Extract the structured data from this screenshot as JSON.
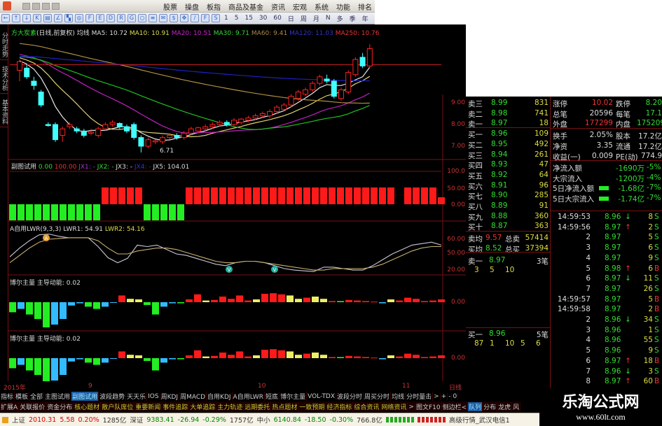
{
  "menu": [
    "股票",
    "操盘",
    "板指",
    "商品及基金",
    "资讯",
    "宏观",
    "系统",
    "功能",
    "排名"
  ],
  "periods": [
    "1",
    "5",
    "15",
    "30",
    "60",
    "日",
    "周",
    "月",
    "N",
    "多",
    "季",
    "年"
  ],
  "side_tabs": [
    "分时走势",
    "技术分析",
    "基本资料"
  ],
  "main_header": {
    "stock": "方大炭素",
    "mode": "(日线,前复权)",
    "ind": "均线",
    "ma5": "MA5: 10.72",
    "ma10": "MA10: 10.91",
    "ma20": "MA20: 10.51",
    "ma30": "MA30: 9.71",
    "ma60": "MA60: 9.41",
    "ma120": "MA120: 11.03",
    "ma250": "MA250: 10.76",
    "low_label": "6.71"
  },
  "panel1_header": {
    "name": "副图试用",
    "v1": "0.00",
    "v2": "100.00",
    "jx1": "JX1: -",
    "jx2": "JX2: -",
    "jx3": "JX3: -",
    "jx4": "JX4: -",
    "jx5": "JX5: 104.01"
  },
  "panel2_header": {
    "name": "A自用LWR(9,3,3)",
    "lwr1": "LWR1: 54.91",
    "lwr2": "LWR2: 54.16"
  },
  "panel3_header": {
    "name": "博尔主量",
    "sub": "主导动能: 0.02"
  },
  "panel4_header": {
    "name": "博尔主量",
    "sub": "主导动能: 0.02"
  },
  "axis": {
    "main": [
      "9.00",
      "8.00",
      "7.00"
    ],
    "p1": [
      "100.0",
      "50.00",
      "0.00"
    ],
    "p2": [
      "60.00",
      "50.00",
      "20.00"
    ],
    "p3": [
      "0.00"
    ],
    "p4": [
      "0.00"
    ]
  },
  "colors": {
    "up": "#ff2020",
    "down": "#40ffff",
    "ma5": "#e8e8e8",
    "ma10": "#e0d070",
    "ma20": "#c020c0",
    "ma30": "#20c020",
    "ma60": "#b09040",
    "ma120": "#2020c0",
    "ma250": "#c02020",
    "green": "#22ee22",
    "red": "#ff1a1a",
    "cyan": "#33bbff",
    "yellow": "#eeee66"
  },
  "candles": [
    [
      10.5,
      11.0,
      10.0,
      10.9
    ],
    [
      10.6,
      10.8,
      10.1,
      10.2
    ],
    [
      10.0,
      10.2,
      9.6,
      9.8
    ],
    [
      9.5,
      9.6,
      8.8,
      8.9
    ],
    [
      8.0,
      8.1,
      7.9,
      7.95
    ],
    [
      8.0,
      8.1,
      7.2,
      7.3
    ],
    [
      7.5,
      7.9,
      7.2,
      7.8
    ],
    [
      7.9,
      8.1,
      7.8,
      8.0
    ],
    [
      7.8,
      7.9,
      7.6,
      7.7
    ],
    [
      7.7,
      7.8,
      7.4,
      7.5
    ],
    [
      7.6,
      7.8,
      7.5,
      7.65
    ],
    [
      7.5,
      7.9,
      7.4,
      7.8
    ],
    [
      7.8,
      8.1,
      7.7,
      8.0
    ],
    [
      8.0,
      8.2,
      7.9,
      8.1
    ],
    [
      8.05,
      8.1,
      7.8,
      7.9
    ],
    [
      7.9,
      8.0,
      7.6,
      7.7
    ],
    [
      8.0,
      8.1,
      7.3,
      7.4
    ],
    [
      7.4,
      7.5,
      6.71,
      7.0
    ],
    [
      7.0,
      7.4,
      6.9,
      7.3
    ],
    [
      7.2,
      7.3,
      7.1,
      7.25
    ],
    [
      7.2,
      7.5,
      7.1,
      7.4
    ],
    [
      7.4,
      7.6,
      7.3,
      7.5
    ],
    [
      7.5,
      7.6,
      7.3,
      7.4
    ],
    [
      7.4,
      7.7,
      7.3,
      7.6
    ],
    [
      7.6,
      7.9,
      7.5,
      7.8
    ],
    [
      7.7,
      7.9,
      7.6,
      7.85
    ],
    [
      7.8,
      8.0,
      7.7,
      7.9
    ],
    [
      7.9,
      8.1,
      7.8,
      8.0
    ],
    [
      8.0,
      8.2,
      7.9,
      8.1
    ],
    [
      8.1,
      8.2,
      7.9,
      8.0
    ],
    [
      8.0,
      8.3,
      7.9,
      8.2
    ],
    [
      8.1,
      8.3,
      8.0,
      8.25
    ],
    [
      8.2,
      8.4,
      8.1,
      8.3
    ],
    [
      8.3,
      8.5,
      8.2,
      8.4
    ],
    [
      8.4,
      8.6,
      8.3,
      8.5
    ],
    [
      8.4,
      8.7,
      8.3,
      8.6
    ],
    [
      8.6,
      8.9,
      8.5,
      8.8
    ],
    [
      8.7,
      9.0,
      8.6,
      8.9
    ],
    [
      8.9,
      9.4,
      8.8,
      9.3
    ],
    [
      9.2,
      9.6,
      9.1,
      9.5
    ],
    [
      9.4,
      9.7,
      9.3,
      9.6
    ],
    [
      9.6,
      10.0,
      9.5,
      9.9
    ],
    [
      9.9,
      10.3,
      9.8,
      10.2
    ],
    [
      10.1,
      10.3,
      9.9,
      10.0
    ],
    [
      10.0,
      10.1,
      9.2,
      9.3
    ],
    [
      9.2,
      9.7,
      9.1,
      9.6
    ],
    [
      9.5,
      10.5,
      9.4,
      10.4
    ],
    [
      10.3,
      11.1,
      10.2,
      11.0
    ],
    [
      11.1,
      11.3,
      10.6,
      10.7
    ],
    [
      10.7,
      11.7,
      10.6,
      11.5
    ]
  ],
  "p1_blocks": [
    -1,
    -1,
    -1,
    -1,
    -1,
    -1,
    -1,
    -1,
    -1,
    -1,
    -1,
    1,
    1,
    1,
    1,
    1,
    -1,
    -1,
    -1,
    -1,
    -1,
    1,
    1,
    1,
    1,
    1,
    1,
    1,
    1,
    1,
    1,
    1,
    1,
    1,
    1,
    1,
    1,
    1,
    1,
    1,
    1,
    1,
    1,
    1,
    1,
    1,
    0,
    1,
    1,
    1,
    1,
    0.5
  ],
  "lwr1": [
    36,
    48,
    58,
    66,
    67,
    64,
    62,
    62,
    62,
    50,
    35,
    28,
    34,
    52,
    50,
    52,
    46,
    40,
    38,
    34,
    30,
    26,
    24,
    28,
    30,
    30,
    28,
    24,
    20,
    18,
    17,
    16,
    22,
    22,
    20,
    18,
    18,
    24,
    32,
    40,
    46,
    52,
    54,
    56,
    52
  ],
  "lwr2": [
    28,
    38,
    48,
    56,
    60,
    61,
    62,
    62,
    62,
    58,
    48,
    40,
    40,
    44,
    46,
    48,
    48,
    46,
    42,
    38,
    34,
    30,
    28,
    28,
    30,
    30,
    28,
    26,
    24,
    22,
    20,
    18,
    18,
    20,
    20,
    20,
    20,
    22,
    26,
    32,
    38,
    44,
    48,
    50,
    50
  ],
  "signals": {
    "up": "A",
    "down": "V"
  },
  "hist": [
    [
      -18,
      "green"
    ],
    [
      -12,
      "cyan"
    ],
    [
      -22,
      "green"
    ],
    [
      -30,
      "green"
    ],
    [
      -45,
      "green"
    ],
    [
      -40,
      "cyan"
    ],
    [
      -30,
      "cyan"
    ],
    [
      -6,
      "cyan"
    ],
    [
      -2,
      "cyan"
    ],
    [
      -8,
      "green"
    ],
    [
      -12,
      "green"
    ],
    [
      -8,
      "cyan"
    ],
    [
      -1,
      "cyan"
    ],
    [
      12,
      "red"
    ],
    [
      6,
      "yellow"
    ],
    [
      5,
      "yellow"
    ],
    [
      -5,
      "green"
    ],
    [
      -22,
      "green"
    ],
    [
      -8,
      "cyan"
    ],
    [
      -2,
      "cyan"
    ],
    [
      -2,
      "green"
    ],
    [
      5,
      "red"
    ],
    [
      14,
      "red"
    ],
    [
      3,
      "yellow"
    ],
    [
      4,
      "red"
    ],
    [
      10,
      "red"
    ],
    [
      6,
      "red"
    ],
    [
      12,
      "red"
    ],
    [
      3,
      "red"
    ],
    [
      5,
      "yellow"
    ],
    [
      15,
      "red"
    ],
    [
      16,
      "red"
    ],
    [
      14,
      "red"
    ],
    [
      12,
      "yellow"
    ],
    [
      6,
      "yellow"
    ],
    [
      8,
      "red"
    ],
    [
      10,
      "yellow"
    ],
    [
      6,
      "yellow"
    ],
    [
      2,
      "red"
    ],
    [
      2,
      "green"
    ],
    [
      4,
      "red"
    ],
    [
      3,
      "red"
    ],
    [
      2,
      "red"
    ],
    [
      1,
      "red"
    ],
    [
      -2,
      "cyan"
    ],
    [
      5,
      "yellow"
    ],
    [
      3,
      "red"
    ],
    [
      8,
      "red"
    ],
    [
      6,
      "red"
    ],
    [
      2,
      "red"
    ],
    [
      3,
      "red"
    ],
    [
      5,
      "red"
    ]
  ],
  "orderbook": {
    "asks": [
      [
        "卖三",
        "8.99",
        "831"
      ],
      [
        "卖二",
        "8.98",
        "741"
      ],
      [
        "卖一",
        "8.97",
        "18"
      ]
    ],
    "bids": [
      [
        "买一",
        "8.96",
        "109"
      ],
      [
        "买二",
        "8.95",
        "492"
      ],
      [
        "买三",
        "8.94",
        "261"
      ],
      [
        "买四",
        "8.93",
        "47"
      ],
      [
        "买五",
        "8.92",
        "64"
      ],
      [
        "买六",
        "8.91",
        "96"
      ],
      [
        "买七",
        "8.90",
        "285"
      ],
      [
        "买八",
        "8.89",
        "91"
      ],
      [
        "买九",
        "8.88",
        "360"
      ],
      [
        "买十",
        "8.87",
        "363"
      ]
    ],
    "avg_sell": [
      "卖均",
      "9.57",
      "总卖",
      "57414"
    ],
    "avg_buy": [
      "买均",
      "8.52",
      "总买",
      "37394"
    ],
    "sell1_queue": {
      "label": "卖一",
      "price": "8.97",
      "count": "3笔",
      "orders": [
        "3",
        "5",
        "10"
      ]
    },
    "buy1_queue": {
      "label": "买一",
      "price": "8.96",
      "count": "5笔",
      "orders": [
        "87",
        "1",
        "10",
        "5",
        "6"
      ]
    }
  },
  "stats": [
    [
      "涨停",
      "10.02",
      "跌停",
      "8.20"
    ],
    [
      "总笔",
      "20596",
      "每笔",
      "17.1"
    ],
    [
      "外盘",
      "177299",
      "内盘",
      "175209"
    ],
    [
      "换手",
      "2.05%",
      "股本",
      "17.2亿"
    ],
    [
      "净资",
      "3.35",
      "流通",
      "17.2亿"
    ],
    [
      "收益(一)",
      "0.009",
      "PE(动)",
      "774.9"
    ]
  ],
  "flows": [
    [
      "净流入额",
      "-1690万",
      "-5%"
    ],
    [
      "大宗流入",
      "-1200万",
      "-4%"
    ],
    [
      "5日净流入额",
      "-1.68亿",
      "-7%"
    ],
    [
      "5日大宗流入",
      "-1.74亿",
      "-7%"
    ]
  ],
  "ticks": [
    [
      "14:59:53",
      "8.96",
      "↓",
      "8",
      "S"
    ],
    [
      "14:59:56",
      "8.97",
      "↑",
      "2",
      "S"
    ],
    [
      "2",
      "8.97",
      "",
      "5",
      "S"
    ],
    [
      "3",
      "8.97",
      "",
      "6",
      "S"
    ],
    [
      "4",
      "8.97",
      "",
      "9",
      "S"
    ],
    [
      "5",
      "8.98",
      "↑",
      "6",
      "B"
    ],
    [
      "6",
      "8.97",
      "↓",
      "11",
      "S"
    ],
    [
      "7",
      "8.97",
      "",
      "26",
      "S"
    ],
    [
      "14:59:57",
      "8.97",
      "",
      "5",
      "B"
    ],
    [
      "14:59:58",
      "8.97",
      "",
      "2",
      "B"
    ],
    [
      "2",
      "8.96",
      "↓",
      "34",
      "S"
    ],
    [
      "3",
      "8.96",
      "",
      "1",
      "S"
    ],
    [
      "4",
      "8.96",
      "",
      "55",
      "S"
    ],
    [
      "5",
      "8.96",
      "",
      "9",
      "S"
    ],
    [
      "6",
      "8.97",
      "↑",
      "18",
      "B"
    ],
    [
      "7",
      "8.96",
      "↓",
      "3",
      "S"
    ],
    [
      "8",
      "8.97",
      "↑",
      "60",
      "B"
    ]
  ],
  "dates": [
    "2015年",
    "9",
    "10",
    "11"
  ],
  "period_label": "日线",
  "tabs1": [
    "指标",
    "模板",
    "全部",
    "主图试用",
    "副图试用",
    "波段趋势",
    "天天乐",
    "IOS",
    "周KDJ",
    "周MACD",
    "自用KDJ",
    "A自用LWR",
    "短底",
    "博尔主量",
    "VOL-TDX",
    "波段分时",
    "周买分时",
    "均线",
    "分时量击",
    ">"
  ],
  "tabs1_active": "副图试用",
  "zoom_ctrl": [
    "+",
    "-",
    "0"
  ],
  "tabs2": [
    "扩展A",
    "关联报价",
    "资金分布",
    "核心题材",
    "散户队席位",
    "重要新闻",
    "事件追踪",
    "大单追踪",
    "主力轨迹",
    "远期委托",
    "热点题材",
    "一致预期",
    "经济指标",
    "综合资讯",
    "网络资讯",
    ">",
    "图文F10",
    "侧边栏<",
    "队列",
    "分布",
    "龙虎",
    "风"
  ],
  "status": {
    "sh": [
      "上证",
      "2010.31",
      "5.58",
      "0.20%",
      "1285亿"
    ],
    "sz": [
      "深证",
      "9383.41",
      "-26.94",
      "-0.29%",
      "1757亿"
    ],
    "zx": [
      "中小",
      "6140.84",
      "-18.50",
      "-0.30%",
      "766.8亿"
    ],
    "server": "高级行情_武汉电信1"
  },
  "watermark": {
    "title": "乐淘公式网",
    "url": "www.60lt.com"
  }
}
